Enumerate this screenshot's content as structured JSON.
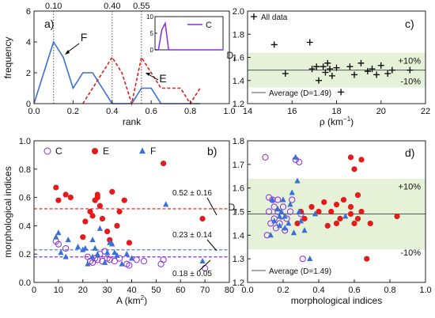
{
  "colors": {
    "C": "#8a2be2",
    "E": "#e41a1c",
    "F": "#3a6fd8",
    "avg": "#555555",
    "band": "#e6f2d8",
    "blackpts": "#000000"
  },
  "chart_data": [
    {
      "panel": "a)",
      "type": "line",
      "xlabel": "rank",
      "ylabel": "frequency",
      "xlim": [
        0,
        1.0
      ],
      "ylim": [
        0,
        6
      ],
      "xticks": [
        "0.0",
        "0.2",
        "0.4",
        "0.6",
        "0.8",
        "1.0"
      ],
      "yticks": [
        "0",
        "2",
        "4",
        "6"
      ],
      "vlines": [
        {
          "x": 0.1,
          "label": "0.10"
        },
        {
          "x": 0.4,
          "label": "0.40"
        },
        {
          "x": 0.55,
          "label": "0.55"
        }
      ],
      "series": [
        {
          "name": "F",
          "style": "solid",
          "color_key": "F",
          "x": [
            0.0,
            0.05,
            0.1,
            0.15,
            0.2,
            0.25,
            0.3,
            0.35,
            0.4,
            0.45,
            0.5,
            0.55,
            0.6,
            0.65,
            0.7,
            0.75,
            0.8,
            0.85
          ],
          "y": [
            0,
            2,
            4,
            3,
            1,
            2,
            2,
            1,
            0,
            0,
            0,
            1,
            1,
            0,
            0,
            0,
            0,
            0
          ]
        },
        {
          "name": "E",
          "style": "dashed",
          "color_key": "E",
          "x": [
            0.25,
            0.3,
            0.35,
            0.4,
            0.45,
            0.5,
            0.55,
            0.6,
            0.65,
            0.7,
            0.75,
            0.8,
            0.85
          ],
          "y": [
            0,
            1,
            2,
            3,
            2,
            0,
            3,
            2,
            1,
            1,
            1,
            0,
            1
          ]
        }
      ],
      "annotations": [
        "F",
        "E"
      ],
      "inset": {
        "legend": "C",
        "color_key": "C",
        "xlim": [
          0,
          1.0
        ],
        "ylim": [
          0,
          10
        ],
        "yticks": [
          "0",
          "5",
          "10"
        ],
        "x": [
          0.0,
          0.05,
          0.1,
          0.15,
          0.2,
          0.25,
          0.3,
          0.5,
          1.0
        ],
        "y": [
          0,
          0,
          6,
          8,
          0,
          0,
          0,
          0,
          0
        ]
      }
    },
    {
      "panel": "b)",
      "type": "scatter",
      "xlabel": "A (km",
      "xlabel_sup": "2",
      "xlabel_end": ")",
      "ylabel": "morphological indices",
      "xlim": [
        0,
        80
      ],
      "ylim": [
        0,
        1.0
      ],
      "xticks": [
        "0",
        "10",
        "20",
        "30",
        "40",
        "50",
        "60",
        "70",
        "80"
      ],
      "yticks": [
        "0.0",
        "0.2",
        "0.4",
        "0.6",
        "0.8",
        "1.0"
      ],
      "legend": [
        "C",
        "E",
        "F"
      ],
      "hlines": [
        {
          "y": 0.52,
          "label": "0.52 ± 0.16",
          "color_key": "E"
        },
        {
          "y": 0.23,
          "label": "0.23 ± 0.14",
          "color_key": "F"
        },
        {
          "y": 0.18,
          "label": "0.18 ± 0.05",
          "color_key": "C"
        }
      ],
      "series": [
        {
          "name": "C",
          "marker": "circle-open",
          "color_key": "C",
          "points": [
            [
              9,
              0.29
            ],
            [
              10,
              0.27
            ],
            [
              13,
              0.24
            ],
            [
              22,
              0.18
            ],
            [
              23,
              0.15
            ],
            [
              24,
              0.14
            ],
            [
              25,
              0.17
            ],
            [
              26,
              0.16
            ],
            [
              27,
              0.2
            ],
            [
              28,
              0.15
            ],
            [
              29,
              0.22
            ],
            [
              30,
              0.17
            ],
            [
              31,
              0.16
            ],
            [
              33,
              0.15
            ],
            [
              35,
              0.17
            ],
            [
              38,
              0.13
            ],
            [
              39,
              0.12
            ],
            [
              42,
              0.16
            ],
            [
              45,
              0.15
            ],
            [
              52,
              0.13
            ],
            [
              53,
              0.16
            ],
            [
              70,
              0.1
            ]
          ]
        },
        {
          "name": "E",
          "marker": "circle-filled",
          "color_key": "E",
          "points": [
            [
              9,
              0.67
            ],
            [
              10,
              0.58
            ],
            [
              13,
              0.62
            ],
            [
              15,
              0.6
            ],
            [
              20,
              0.32
            ],
            [
              21,
              0.43
            ],
            [
              23,
              0.5
            ],
            [
              24,
              0.47
            ],
            [
              25,
              0.58
            ],
            [
              26,
              0.6
            ],
            [
              26,
              0.62
            ],
            [
              27,
              0.54
            ],
            [
              28,
              0.45
            ],
            [
              30,
              0.36
            ],
            [
              31,
              0.3
            ],
            [
              32,
              0.64
            ],
            [
              34,
              0.4
            ],
            [
              35,
              0.5
            ],
            [
              37,
              0.58
            ],
            [
              39,
              0.28
            ],
            [
              53,
              0.84
            ],
            [
              69,
              0.45
            ]
          ]
        },
        {
          "name": "F",
          "marker": "triangle",
          "color_key": "F",
          "points": [
            [
              9,
              0.32
            ],
            [
              10,
              0.35
            ],
            [
              11,
              0.21
            ],
            [
              13,
              0.18
            ],
            [
              14,
              0.3
            ],
            [
              18,
              0.25
            ],
            [
              20,
              0.23
            ],
            [
              21,
              0.24
            ],
            [
              22,
              0.13
            ],
            [
              24,
              0.18
            ],
            [
              24,
              0.3
            ],
            [
              25,
              0.24
            ],
            [
              26,
              0.2
            ],
            [
              27,
              0.38
            ],
            [
              29,
              0.14
            ],
            [
              30,
              0.21
            ],
            [
              31,
              0.28
            ],
            [
              32,
              0.27
            ],
            [
              33,
              0.21
            ],
            [
              34,
              0.19
            ],
            [
              36,
              0.13
            ],
            [
              38,
              0.2
            ],
            [
              40,
              0.17
            ],
            [
              54,
              0.55
            ],
            [
              69,
              0.15
            ]
          ]
        }
      ]
    },
    {
      "panel": "c)",
      "type": "scatter",
      "xlabel": "ρ (km",
      "xlabel_sup": "−1",
      "xlabel_end": ")",
      "ylabel": "D",
      "ylabel_sub": "f",
      "xlim": [
        14,
        22
      ],
      "ylim": [
        1.2,
        2.0
      ],
      "xticks": [
        "14",
        "16",
        "18",
        "20",
        "22"
      ],
      "yticks": [
        "1.2",
        "1.4",
        "1.6",
        "1.8",
        "2.0"
      ],
      "legend": [
        "All data"
      ],
      "average": {
        "y": 1.49,
        "label": "Average (D=1.49)"
      },
      "band": {
        "lo": 1.34,
        "hi": 1.64,
        "plus_label": "+10%",
        "minus_label": "-10%"
      },
      "series": [
        {
          "name": "All data",
          "marker": "plus",
          "color_key": "blackpts",
          "points": [
            [
              15.2,
              1.71
            ],
            [
              15.7,
              1.46
            ],
            [
              16.8,
              1.73
            ],
            [
              16.9,
              1.5
            ],
            [
              17.1,
              1.52
            ],
            [
              17.2,
              1.4
            ],
            [
              17.4,
              1.52
            ],
            [
              17.5,
              1.47
            ],
            [
              17.6,
              1.55
            ],
            [
              17.7,
              1.5
            ],
            [
              17.8,
              1.44
            ],
            [
              18.0,
              1.51
            ],
            [
              18.2,
              1.3
            ],
            [
              18.6,
              1.52
            ],
            [
              18.8,
              1.45
            ],
            [
              19.1,
              1.55
            ],
            [
              19.4,
              1.48
            ],
            [
              19.6,
              1.5
            ],
            [
              19.8,
              1.45
            ],
            [
              20.0,
              1.53
            ],
            [
              20.3,
              1.46
            ],
            [
              20.5,
              1.49
            ],
            [
              21.3,
              1.49
            ]
          ]
        }
      ]
    },
    {
      "panel": "d)",
      "type": "scatter",
      "xlabel": "morphological indices",
      "ylabel": "D",
      "ylabel_sub": "f",
      "xlim": [
        0,
        1.0
      ],
      "ylim": [
        1.2,
        1.8
      ],
      "xticks": [
        "0.0",
        "0.2",
        "0.4",
        "0.6",
        "0.8",
        "1.0"
      ],
      "yticks": [
        "1.2",
        "1.3",
        "1.4",
        "1.5",
        "1.6",
        "1.7",
        "1.8"
      ],
      "average": {
        "y": 1.49,
        "label": "Average (D=1.49)"
      },
      "band": {
        "lo": 1.34,
        "hi": 1.64,
        "plus_label": "+10%",
        "minus_label": "-10%"
      },
      "series": [
        {
          "name": "C",
          "marker": "circle-open",
          "color_key": "C",
          "points": [
            [
              0.1,
              1.73
            ],
            [
              0.11,
              1.4
            ],
            [
              0.12,
              1.5
            ],
            [
              0.13,
              1.45
            ],
            [
              0.14,
              1.55
            ],
            [
              0.15,
              1.47
            ],
            [
              0.15,
              1.52
            ],
            [
              0.16,
              1.43
            ],
            [
              0.17,
              1.5
            ],
            [
              0.17,
              1.55
            ],
            [
              0.18,
              1.45
            ],
            [
              0.19,
              1.48
            ],
            [
              0.2,
              1.52
            ],
            [
              0.21,
              1.42
            ],
            [
              0.22,
              1.47
            ],
            [
              0.24,
              1.5
            ],
            [
              0.25,
              1.55
            ],
            [
              0.27,
              1.72
            ],
            [
              0.29,
              1.71
            ],
            [
              0.3,
              1.49
            ],
            [
              0.31,
              1.3
            ],
            [
              0.12,
              1.56
            ]
          ]
        },
        {
          "name": "E",
          "marker": "circle-filled",
          "color_key": "E",
          "points": [
            [
              0.28,
              1.45
            ],
            [
              0.3,
              1.5
            ],
            [
              0.32,
              1.47
            ],
            [
              0.36,
              1.52
            ],
            [
              0.4,
              1.5
            ],
            [
              0.43,
              1.54
            ],
            [
              0.45,
              1.44
            ],
            [
              0.47,
              1.5
            ],
            [
              0.5,
              1.45
            ],
            [
              0.5,
              1.53
            ],
            [
              0.52,
              1.47
            ],
            [
              0.54,
              1.55
            ],
            [
              0.58,
              1.49
            ],
            [
              0.58,
              1.52
            ],
            [
              0.58,
              1.73
            ],
            [
              0.6,
              1.45
            ],
            [
              0.6,
              1.68
            ],
            [
              0.62,
              1.57
            ],
            [
              0.64,
              1.72
            ],
            [
              0.64,
              1.5
            ],
            [
              0.67,
              1.3
            ],
            [
              0.69,
              1.45
            ],
            [
              0.84,
              1.48
            ],
            [
              0.62,
              1.47
            ]
          ]
        },
        {
          "name": "F",
          "marker": "triangle",
          "color_key": "F",
          "points": [
            [
              0.13,
              1.4
            ],
            [
              0.14,
              1.55
            ],
            [
              0.15,
              1.46
            ],
            [
              0.17,
              1.51
            ],
            [
              0.18,
              1.44
            ],
            [
              0.19,
              1.5
            ],
            [
              0.2,
              1.55
            ],
            [
              0.21,
              1.43
            ],
            [
              0.21,
              1.48
            ],
            [
              0.23,
              1.45
            ],
            [
              0.24,
              1.53
            ],
            [
              0.25,
              1.58
            ],
            [
              0.27,
              1.73
            ],
            [
              0.28,
              1.63
            ],
            [
              0.29,
              1.5
            ],
            [
              0.3,
              1.46
            ],
            [
              0.32,
              1.42
            ],
            [
              0.35,
              1.3
            ],
            [
              0.38,
              1.49
            ],
            [
              0.55,
              1.48
            ],
            [
              0.18,
              1.48
            ],
            [
              0.26,
              1.41
            ]
          ]
        }
      ]
    }
  ]
}
